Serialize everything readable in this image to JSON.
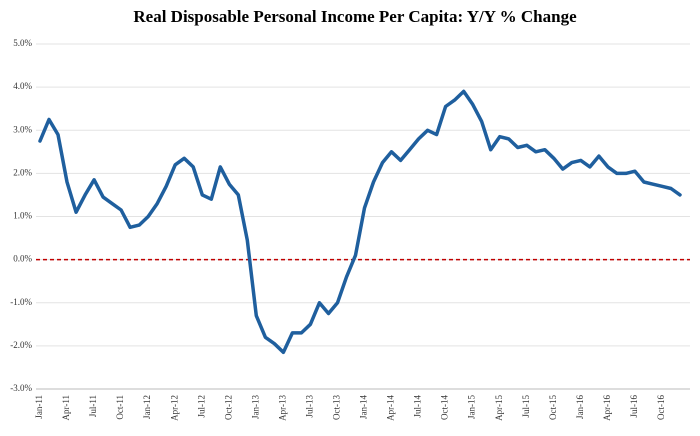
{
  "chart_data": {
    "type": "line",
    "title": "Real Disposable Personal Income Per Capita: Y/Y % Change",
    "categories": [
      "Jan-11",
      null,
      null,
      "Apr-11",
      null,
      null,
      "Jul-11",
      null,
      null,
      "Oct-11",
      null,
      null,
      "Jan-12",
      null,
      null,
      "Apr-12",
      null,
      null,
      "Jul-12",
      null,
      null,
      "Oct-12",
      null,
      null,
      "Jan-13",
      null,
      null,
      "Apr-13",
      null,
      null,
      "Jul-13",
      null,
      null,
      "Oct-13",
      null,
      null,
      "Jan-14",
      null,
      null,
      "Apr-14",
      null,
      null,
      "Jul-14",
      null,
      null,
      "Oct-14",
      null,
      null,
      "Jan-15",
      null,
      null,
      "Apr-15",
      null,
      null,
      "Jul-15",
      null,
      null,
      "Oct-15",
      null,
      null,
      "Jan-16",
      null,
      null,
      "Apr-16",
      null,
      null,
      "Jul-16",
      null,
      null,
      "Oct-16",
      null,
      null
    ],
    "series": [
      {
        "name": "Real Disposable Personal Income Per Capita",
        "color": "#1f5f9e",
        "values": [
          2.75,
          3.25,
          2.9,
          1.8,
          1.1,
          1.5,
          1.85,
          1.45,
          1.3,
          1.15,
          0.75,
          0.8,
          1.0,
          1.3,
          1.7,
          2.2,
          2.35,
          2.15,
          1.5,
          1.4,
          2.15,
          1.75,
          1.5,
          0.45,
          -1.3,
          -1.8,
          -1.95,
          -2.15,
          -1.7,
          -1.7,
          -1.5,
          -1.0,
          -1.25,
          -1.0,
          -0.4,
          0.1,
          1.2,
          1.8,
          2.25,
          2.5,
          2.3,
          2.55,
          2.8,
          3.0,
          2.9,
          3.55,
          3.7,
          3.9,
          3.6,
          3.2,
          2.55,
          2.85,
          2.8,
          2.6,
          2.65,
          2.5,
          2.55,
          2.35,
          2.1,
          2.25,
          2.3,
          2.15,
          2.4,
          2.15,
          2.0,
          2.0,
          2.05,
          1.8,
          1.75,
          1.7,
          1.65,
          1.5
        ]
      }
    ],
    "ylim": [
      -3,
      5
    ],
    "yticks": [
      {
        "value": -3,
        "label": "-3.0%"
      },
      {
        "value": -2,
        "label": "-2.0%"
      },
      {
        "value": -1,
        "label": "-1.0%"
      },
      {
        "value": 0,
        "label": "0.0%"
      },
      {
        "value": 1,
        "label": "1.0%"
      },
      {
        "value": 2,
        "label": "2.0%"
      },
      {
        "value": 3,
        "label": "3.0%"
      },
      {
        "value": 4,
        "label": "4.0%"
      },
      {
        "value": 5,
        "label": "5.0%"
      }
    ],
    "grid": true,
    "reference_line": {
      "value": 0,
      "color": "#c00000"
    }
  }
}
